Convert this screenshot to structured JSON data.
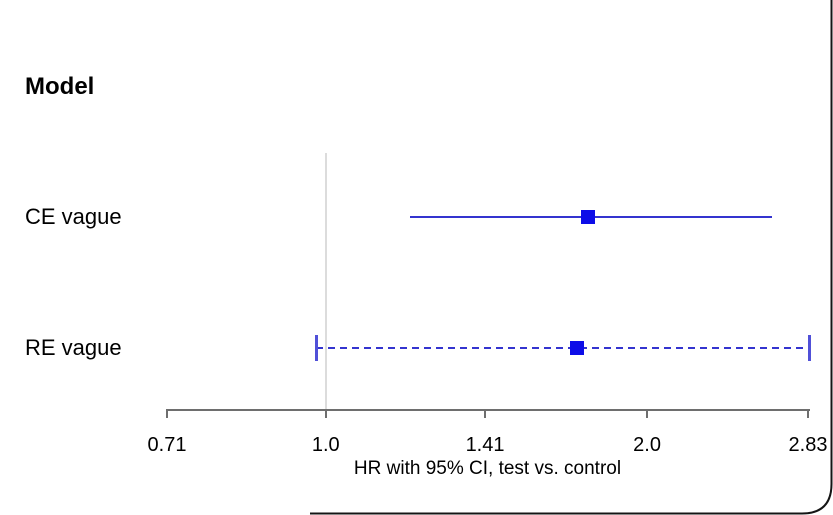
{
  "title": "Model",
  "chart_data": {
    "type": "forest",
    "scale": "log2",
    "axis": {
      "min": 0.71,
      "max": 2.83,
      "ticks": [
        {
          "label": "0.71",
          "value": 0.71
        },
        {
          "label": "1.0",
          "value": 1.0
        },
        {
          "label": "1.41",
          "value": 1.41
        },
        {
          "label": "2.0",
          "value": 2.0
        },
        {
          "label": "2.83",
          "value": 2.83
        }
      ],
      "xlabel": "HR with 95% CI, test vs. control"
    },
    "reference_line": 1.0,
    "rows": [
      {
        "label": "CE vague",
        "estimate": 1.76,
        "ci_low": 1.2,
        "ci_high": 2.62,
        "line_style": "solid",
        "end_caps": false
      },
      {
        "label": "RE vague",
        "estimate": 1.72,
        "ci_low": 0.98,
        "ci_high": 2.84,
        "line_style": "dashed",
        "end_caps": true
      }
    ]
  },
  "colors": {
    "ci_line_blue": "#3434cf",
    "marker_blue": "#0d0de8",
    "cap_blue": "#5050d8",
    "axis_gray": "#6e6e6e",
    "reference_gray": "#dcdcdc",
    "frame_black": "#151515",
    "text_black": "#000000"
  }
}
